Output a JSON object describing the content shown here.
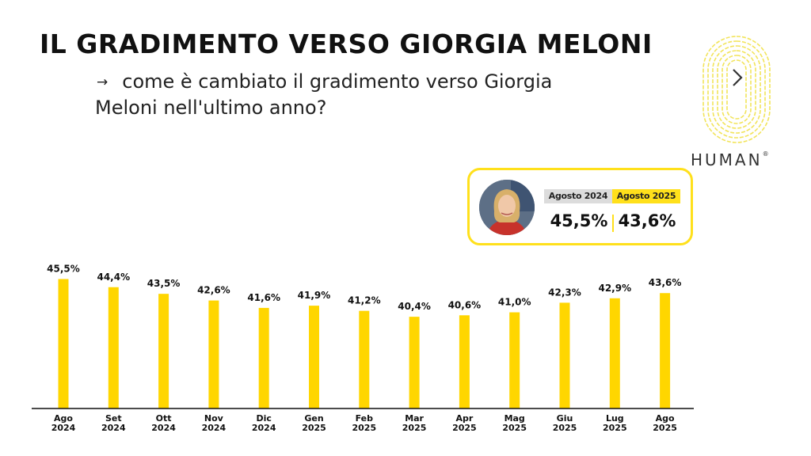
{
  "title": "IL GRADIMENTO VERSO GIORGIA MELONI",
  "subtitle": {
    "arrow": "→",
    "text": "come è cambiato il gradimento verso Giorgia Meloni nell'ultimo anno?"
  },
  "logo": {
    "brand": "HUMAN",
    "mark": "®",
    "icon": "fingerprint-icon"
  },
  "comparison": {
    "label_prev": "Agosto 2024",
    "label_curr": "Agosto 2025",
    "value_prev": "45,5%",
    "value_curr": "43,6%"
  },
  "colors": {
    "accent": "#FFE01B",
    "bar": "#FFD600",
    "text": "#111111"
  },
  "chart_data": {
    "type": "bar",
    "categories": [
      [
        "Ago",
        "2024"
      ],
      [
        "Set",
        "2024"
      ],
      [
        "Ott",
        "2024"
      ],
      [
        "Nov",
        "2024"
      ],
      [
        "Dic",
        "2024"
      ],
      [
        "Gen",
        "2025"
      ],
      [
        "Feb",
        "2025"
      ],
      [
        "Mar",
        "2025"
      ],
      [
        "Apr",
        "2025"
      ],
      [
        "Mag",
        "2025"
      ],
      [
        "Giu",
        "2025"
      ],
      [
        "Lug",
        "2025"
      ],
      [
        "Ago",
        "2025"
      ]
    ],
    "values": [
      45.5,
      44.4,
      43.5,
      42.6,
      41.6,
      41.9,
      41.2,
      40.4,
      40.6,
      41.0,
      42.3,
      42.9,
      43.6
    ],
    "labels": [
      "45,5%",
      "44,4%",
      "43,5%",
      "42,6%",
      "41,6%",
      "41,9%",
      "41,2%",
      "40,4%",
      "40,6%",
      "41,0%",
      "42,3%",
      "42,9%",
      "43,6%"
    ],
    "ylim": [
      28,
      46.3
    ],
    "grid": false,
    "legend": "none"
  }
}
